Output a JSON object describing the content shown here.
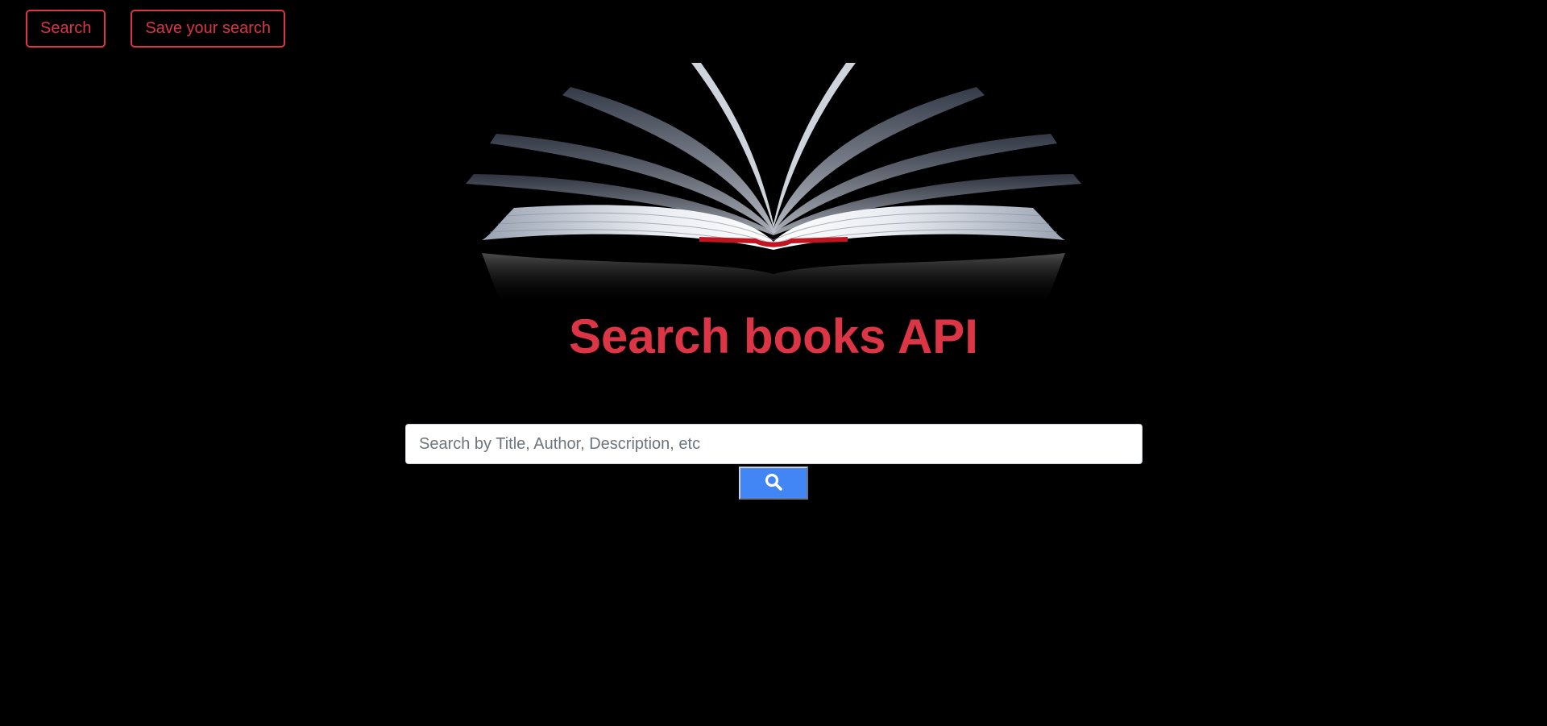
{
  "nav": {
    "search_label": "Search",
    "save_label": "Save your search"
  },
  "hero": {
    "image_alt": "Open book"
  },
  "title": "Search books API",
  "search": {
    "placeholder": "Search by Title, Author, Description, etc",
    "value": "",
    "button_icon": "search-icon"
  },
  "colors": {
    "background": "#000000",
    "accent": "#dc3545",
    "search_button": "#4285f4"
  }
}
